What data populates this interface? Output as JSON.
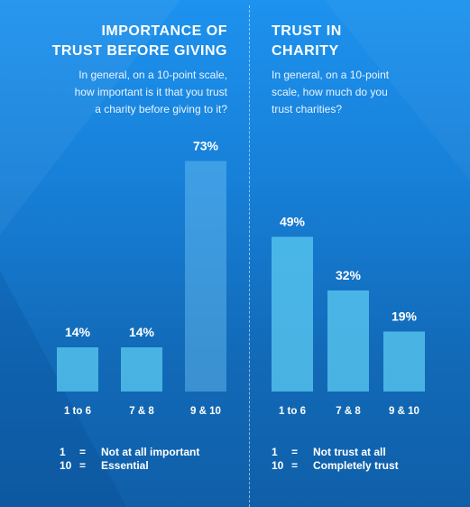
{
  "chart_data": [
    {
      "type": "bar",
      "title_lines": [
        "IMPORTANCE OF",
        "TRUST BEFORE GIVING"
      ],
      "question_lines": [
        "In general, on a 10-point scale,",
        "how important is it that you trust",
        "a charity before giving to it?"
      ],
      "categories": [
        "1 to 6",
        "7 & 8",
        "9 & 10"
      ],
      "values": [
        14,
        14,
        73
      ],
      "value_labels": [
        "14%",
        "14%",
        "73%"
      ],
      "ylim": [
        0,
        100
      ],
      "highlight_index": 2,
      "legend": [
        {
          "key": "1",
          "eq": "=",
          "text": "Not at all important"
        },
        {
          "key": "10",
          "eq": "=",
          "text": "Essential"
        }
      ]
    },
    {
      "type": "bar",
      "title_lines": [
        "TRUST IN",
        "CHARITY"
      ],
      "question_lines": [
        "In general, on a 10-point",
        "scale, how much do you",
        "trust charities?"
      ],
      "categories": [
        "1 to 6",
        "7 & 8",
        "9 & 10"
      ],
      "values": [
        49,
        32,
        19
      ],
      "value_labels": [
        "49%",
        "32%",
        "19%"
      ],
      "ylim": [
        0,
        100
      ],
      "highlight_index": -1,
      "legend": [
        {
          "key": "1",
          "eq": "=",
          "text": "Not trust at all"
        },
        {
          "key": "10",
          "eq": "=",
          "text": "Completely trust"
        }
      ]
    }
  ],
  "colors": {
    "background_top": "#1d92ee",
    "background_bottom": "#0f5fa8",
    "bar": "#58c8f0",
    "text": "#ffffff"
  }
}
